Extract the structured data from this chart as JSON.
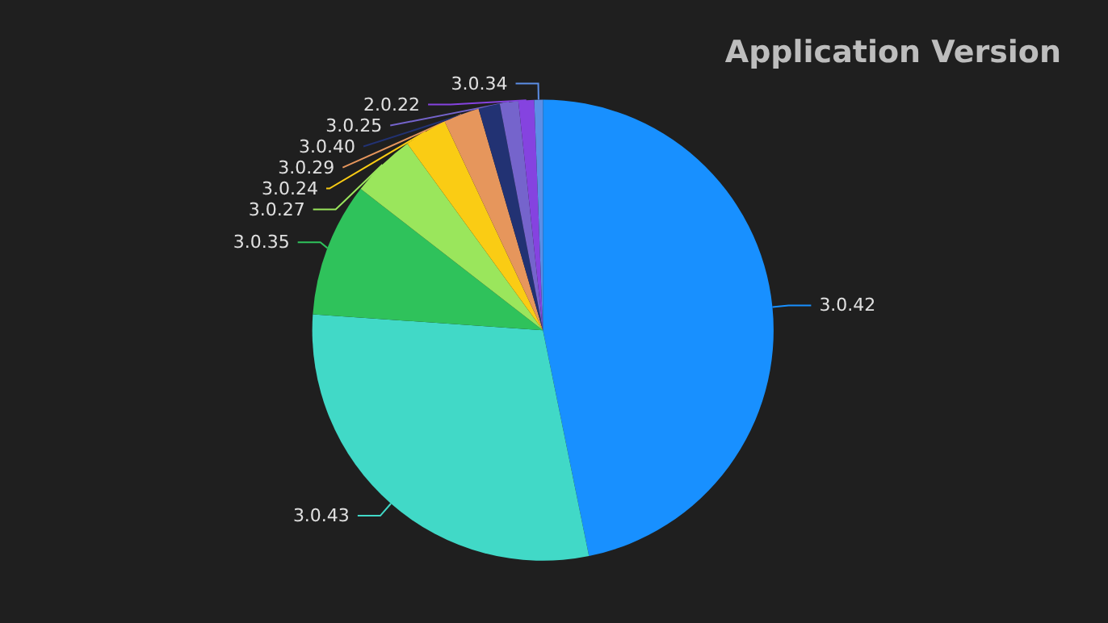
{
  "chart_data": {
    "type": "pie",
    "title": "Application Version",
    "categories": [
      "3.0.42",
      "3.0.43",
      "3.0.35",
      "3.0.27",
      "3.0.24",
      "3.0.29",
      "3.0.40",
      "3.0.25",
      "2.0.22",
      "3.0.34"
    ],
    "values": [
      46.8,
      29.3,
      9.4,
      4.5,
      3.0,
      2.5,
      1.5,
      1.3,
      1.1,
      0.6
    ],
    "colors": [
      "#1890ff",
      "#41d9c7",
      "#2fc25b",
      "#9ae65c",
      "#facc14",
      "#e6965c",
      "#223273",
      "#7564cc",
      "#8543e0",
      "#5c8ee6"
    ]
  }
}
